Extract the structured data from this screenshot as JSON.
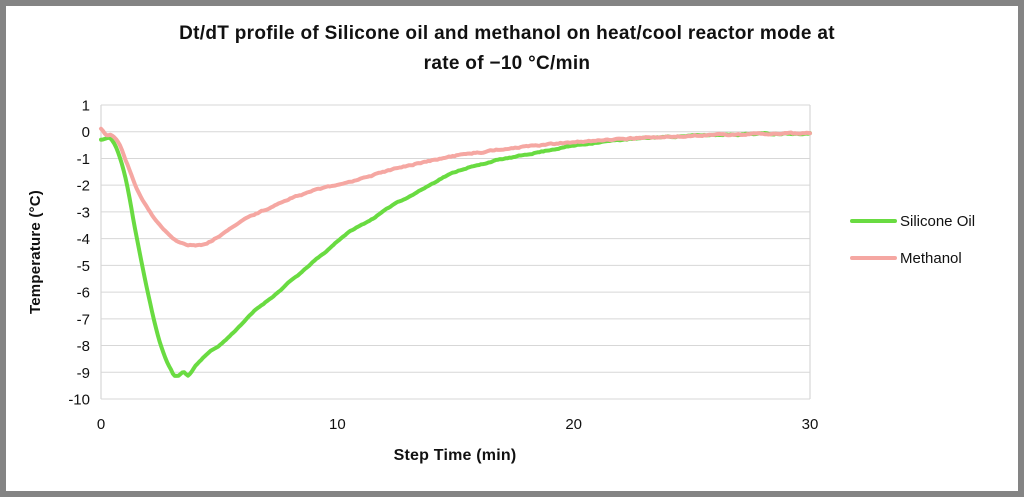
{
  "page": {
    "background": "#ffffff",
    "frame_border_color": "#848484"
  },
  "chart_data": {
    "type": "line",
    "title_lines": [
      "Dt/dT profile of Silicone oil and methanol on heat/cool reactor mode at",
      "rate of −10 °C/min"
    ],
    "xlabel": "Step Time (min)",
    "ylabel": "Temperature (°C)",
    "xlim": [
      0,
      30
    ],
    "ylim": [
      -10,
      1
    ],
    "x_ticks": [
      0,
      10,
      20,
      30
    ],
    "y_ticks": [
      1,
      0,
      -1,
      -2,
      -3,
      -4,
      -5,
      -6,
      -7,
      -8,
      -9,
      -10
    ],
    "grid": "horizontal",
    "grid_color": "#d7d7d7",
    "legend_position": "right",
    "series": [
      {
        "name": "Silicone Oil",
        "color": "#69db41",
        "points": [
          [
            0,
            -0.3
          ],
          [
            0.5,
            -0.35
          ],
          [
            1,
            -1.6
          ],
          [
            1.5,
            -3.9
          ],
          [
            2,
            -6.1
          ],
          [
            2.5,
            -7.9
          ],
          [
            3,
            -8.95
          ],
          [
            3.2,
            -9.15
          ],
          [
            3.5,
            -9.0
          ],
          [
            3.7,
            -9.1
          ],
          [
            4,
            -8.75
          ],
          [
            4.5,
            -8.3
          ],
          [
            5,
            -8.0
          ],
          [
            5.5,
            -7.6
          ],
          [
            6,
            -7.15
          ],
          [
            6.5,
            -6.7
          ],
          [
            7,
            -6.35
          ],
          [
            7.5,
            -6.0
          ],
          [
            8,
            -5.6
          ],
          [
            8.5,
            -5.25
          ],
          [
            9,
            -4.85
          ],
          [
            9.5,
            -4.5
          ],
          [
            10,
            -4.1
          ],
          [
            10.5,
            -3.75
          ],
          [
            11,
            -3.5
          ],
          [
            11.5,
            -3.25
          ],
          [
            12,
            -2.95
          ],
          [
            12.5,
            -2.65
          ],
          [
            13,
            -2.45
          ],
          [
            13.5,
            -2.2
          ],
          [
            14,
            -1.95
          ],
          [
            14.5,
            -1.7
          ],
          [
            15,
            -1.5
          ],
          [
            15.5,
            -1.35
          ],
          [
            16,
            -1.25
          ],
          [
            16.5,
            -1.12
          ],
          [
            17,
            -1.02
          ],
          [
            17.5,
            -0.95
          ],
          [
            18,
            -0.85
          ],
          [
            18.5,
            -0.77
          ],
          [
            19,
            -0.68
          ],
          [
            19.5,
            -0.6
          ],
          [
            20,
            -0.52
          ],
          [
            20.5,
            -0.46
          ],
          [
            21,
            -0.4
          ],
          [
            21.5,
            -0.35
          ],
          [
            22,
            -0.3
          ],
          [
            22.5,
            -0.27
          ],
          [
            23,
            -0.24
          ],
          [
            23.5,
            -0.21
          ],
          [
            24,
            -0.19
          ],
          [
            24.5,
            -0.17
          ],
          [
            25,
            -0.15
          ],
          [
            25.5,
            -0.13
          ],
          [
            26,
            -0.12
          ],
          [
            26.5,
            -0.1
          ],
          [
            27,
            -0.1
          ],
          [
            27.5,
            -0.08
          ],
          [
            28,
            -0.07
          ],
          [
            28.5,
            -0.08
          ],
          [
            29,
            -0.06
          ],
          [
            29.5,
            -0.07
          ],
          [
            30,
            -0.05
          ]
        ]
      },
      {
        "name": "Methanol",
        "color": "#f5a7a2",
        "points": [
          [
            0,
            0.1
          ],
          [
            0.2,
            -0.1
          ],
          [
            0.5,
            -0.15
          ],
          [
            0.8,
            -0.5
          ],
          [
            1,
            -1.0
          ],
          [
            1.5,
            -2.1
          ],
          [
            2,
            -2.9
          ],
          [
            2.5,
            -3.5
          ],
          [
            3,
            -3.95
          ],
          [
            3.5,
            -4.2
          ],
          [
            4,
            -4.25
          ],
          [
            4.5,
            -4.15
          ],
          [
            5,
            -3.9
          ],
          [
            5.5,
            -3.6
          ],
          [
            6,
            -3.3
          ],
          [
            6.5,
            -3.1
          ],
          [
            7,
            -2.9
          ],
          [
            7.5,
            -2.7
          ],
          [
            8,
            -2.5
          ],
          [
            8.5,
            -2.35
          ],
          [
            9,
            -2.2
          ],
          [
            9.5,
            -2.1
          ],
          [
            10,
            -1.97
          ],
          [
            10.5,
            -1.88
          ],
          [
            11,
            -1.75
          ],
          [
            11.5,
            -1.63
          ],
          [
            12,
            -1.5
          ],
          [
            12.5,
            -1.38
          ],
          [
            13,
            -1.27
          ],
          [
            13.5,
            -1.17
          ],
          [
            14,
            -1.07
          ],
          [
            14.5,
            -0.98
          ],
          [
            15,
            -0.9
          ],
          [
            15.5,
            -0.83
          ],
          [
            16,
            -0.78
          ],
          [
            16.5,
            -0.71
          ],
          [
            17,
            -0.65
          ],
          [
            17.5,
            -0.6
          ],
          [
            18,
            -0.56
          ],
          [
            18.5,
            -0.51
          ],
          [
            19,
            -0.47
          ],
          [
            19.5,
            -0.43
          ],
          [
            20,
            -0.4
          ],
          [
            20.5,
            -0.36
          ],
          [
            21,
            -0.33
          ],
          [
            21.5,
            -0.3
          ],
          [
            22,
            -0.27
          ],
          [
            22.5,
            -0.24
          ],
          [
            23,
            -0.22
          ],
          [
            23.5,
            -0.2
          ],
          [
            24,
            -0.18
          ],
          [
            24.5,
            -0.16
          ],
          [
            25,
            -0.14
          ],
          [
            25.5,
            -0.13
          ],
          [
            26,
            -0.12
          ],
          [
            26.5,
            -0.11
          ],
          [
            27,
            -0.1
          ],
          [
            27.5,
            -0.09
          ],
          [
            28,
            -0.08
          ],
          [
            28.5,
            -0.08
          ],
          [
            29,
            -0.07
          ],
          [
            29.5,
            -0.06
          ],
          [
            30,
            -0.06
          ]
        ]
      }
    ]
  }
}
